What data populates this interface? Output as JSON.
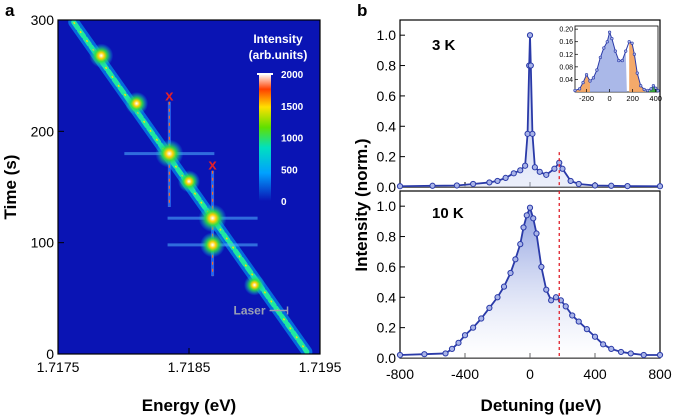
{
  "panel_labels": {
    "a": "a",
    "b": "b"
  },
  "colors": {
    "heatmap_background": "#0a14b4",
    "trace_color": "#2a3aa8",
    "marker_fill": "#a9b4e8",
    "fill_area": "#8ea0e0",
    "side_peak_fill": "#f2a05a",
    "marker_x": "#e0202a",
    "dashed_line": "#e0202a",
    "green_peak": "#2aa02a",
    "laser_label": "#9aa0b4"
  },
  "chart_data": [
    {
      "type": "heatmap",
      "xlabel": "Energy (eV)",
      "ylabel": "Time (s)",
      "xlim": [
        1.7175,
        1.7195
      ],
      "ylim": [
        0,
        300
      ],
      "xticks": [
        "1.7175",
        "1.7185",
        "1.7195"
      ],
      "xtick_values": [
        1.7175,
        1.7185,
        1.7195
      ],
      "yticks": [
        "0",
        "100",
        "200",
        "300"
      ],
      "ytick_values": [
        0,
        100,
        200,
        300
      ],
      "colorbar": {
        "title_line1": "Intensity",
        "title_line2": "(arb.units)",
        "ticks": [
          "2000",
          "1500",
          "1000",
          "500",
          "0"
        ],
        "tick_values": [
          2000,
          1500,
          1000,
          500,
          0
        ],
        "range": [
          0,
          2000
        ]
      },
      "diagonal_line": {
        "start": [
          1.71762,
          298
        ],
        "end": [
          1.7194,
          2
        ]
      },
      "hot_spots": [
        {
          "energy": 1.71835,
          "time": 180,
          "level": 2000
        },
        {
          "energy": 1.71868,
          "time": 122,
          "level": 2000
        },
        {
          "energy": 1.71868,
          "time": 98,
          "level": 1700
        },
        {
          "energy": 1.71783,
          "time": 268,
          "level": 1600
        },
        {
          "energy": 1.7181,
          "time": 225,
          "level": 1500
        },
        {
          "energy": 1.7185,
          "time": 155,
          "level": 1400
        },
        {
          "energy": 1.719,
          "time": 62,
          "level": 1300
        }
      ],
      "x_markers": [
        {
          "energy": 1.71835,
          "time": 232,
          "label": "x"
        },
        {
          "energy": 1.71868,
          "time": 170,
          "label": "x"
        }
      ],
      "annotation": {
        "text": "Laser",
        "energy": 1.71913,
        "time": 40
      }
    },
    {
      "type": "line",
      "panel": "b",
      "ylabel": "Intensity (norm.)",
      "xlabel": "Detuning (μeV)",
      "xlim": [
        -800,
        800
      ],
      "xticks": [
        "-800",
        "-400",
        "0",
        "400",
        "800"
      ],
      "xtick_values": [
        -800,
        -400,
        0,
        400,
        800
      ],
      "dashed_line_x": 180,
      "subplots": [
        {
          "label": "3 K",
          "ylim": [
            0,
            1.1
          ],
          "yticks": [
            "0.0",
            "0.2",
            "0.4",
            "0.6",
            "0.8",
            "1.0"
          ],
          "ytick_values": [
            0,
            0.2,
            0.4,
            0.6,
            0.8,
            1.0
          ],
          "x": [
            -800,
            -600,
            -450,
            -350,
            -250,
            -200,
            -150,
            -100,
            -60,
            -30,
            -15,
            -5,
            0,
            5,
            15,
            30,
            60,
            100,
            150,
            180,
            200,
            250,
            300,
            400,
            500,
            600,
            800
          ],
          "y": [
            0.005,
            0.008,
            0.01,
            0.02,
            0.03,
            0.04,
            0.06,
            0.09,
            0.11,
            0.14,
            0.35,
            0.8,
            1.0,
            0.8,
            0.35,
            0.13,
            0.1,
            0.08,
            0.12,
            0.16,
            0.12,
            0.04,
            0.02,
            0.01,
            0.008,
            0.006,
            0.005
          ],
          "inset": {
            "xlim": [
              -300,
              420
            ],
            "ylim": [
              0,
              0.21
            ],
            "xticks": [
              "-200",
              "0",
              "200",
              "400"
            ],
            "xtick_values": [
              -200,
              0,
              200,
              400
            ],
            "yticks": [
              "0.04",
              "0.08",
              "0.12",
              "0.16",
              "0.20"
            ],
            "ytick_values": [
              0.04,
              0.08,
              0.12,
              0.16,
              0.2
            ],
            "x": [
              -300,
              -260,
              -230,
              -200,
              -170,
              -140,
              -110,
              -80,
              -50,
              -20,
              0,
              20,
              50,
              80,
              110,
              140,
              170,
              195,
              215,
              240,
              270,
              300,
              330,
              360,
              380,
              400,
              420
            ],
            "y": [
              0.005,
              0.01,
              0.03,
              0.055,
              0.035,
              0.045,
              0.07,
              0.11,
              0.14,
              0.16,
              0.19,
              0.17,
              0.13,
              0.1,
              0.1,
              0.13,
              0.16,
              0.155,
              0.12,
              0.06,
              0.02,
              0.008,
              0.005,
              0.01,
              0.02,
              0.012,
              0.004
            ]
          }
        },
        {
          "label": "10 K",
          "ylim": [
            0,
            1.1
          ],
          "yticks": [
            "0.0",
            "0.2",
            "0.4",
            "0.6",
            "0.8",
            "1.0"
          ],
          "ytick_values": [
            0,
            0.2,
            0.4,
            0.6,
            0.8,
            1.0
          ],
          "x": [
            -800,
            -650,
            -520,
            -480,
            -440,
            -400,
            -350,
            -300,
            -250,
            -200,
            -160,
            -120,
            -90,
            -60,
            -40,
            -20,
            0,
            20,
            40,
            70,
            100,
            130,
            160,
            190,
            220,
            260,
            300,
            350,
            400,
            450,
            500,
            560,
            620,
            700,
            800
          ],
          "y": [
            0.02,
            0.025,
            0.03,
            0.06,
            0.1,
            0.15,
            0.2,
            0.26,
            0.33,
            0.4,
            0.47,
            0.56,
            0.65,
            0.75,
            0.86,
            0.94,
            0.99,
            0.92,
            0.82,
            0.6,
            0.45,
            0.38,
            0.4,
            0.38,
            0.34,
            0.28,
            0.24,
            0.19,
            0.14,
            0.09,
            0.06,
            0.04,
            0.03,
            0.02,
            0.02
          ]
        }
      ]
    }
  ]
}
